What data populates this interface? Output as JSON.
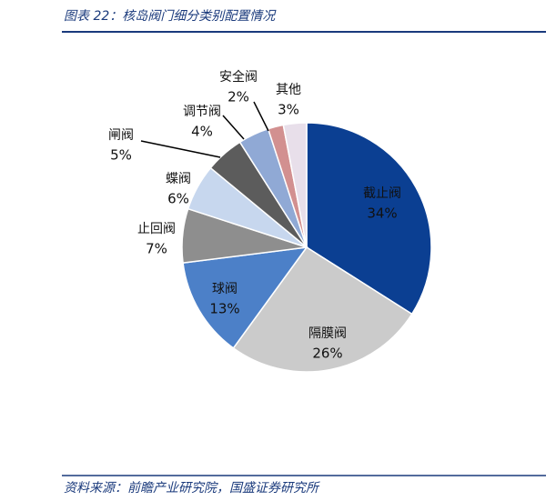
{
  "chart_data": {
    "type": "pie",
    "title": "图表 22：核岛阀门细分类别配置情况",
    "source": "资料来源：前瞻产业研究院，国盛证券研究所",
    "categories": [
      "截止阀",
      "隔膜阀",
      "球阀",
      "止回阀",
      "蝶阀",
      "闸阀",
      "调节阀",
      "安全阀",
      "其他"
    ],
    "values": [
      34,
      26,
      13,
      7,
      6,
      5,
      4,
      2,
      3
    ],
    "value_labels": [
      "34%",
      "26%",
      "13%",
      "7%",
      "6%",
      "5%",
      "4%",
      "2%",
      "3%"
    ],
    "colors": [
      "#0b3f92",
      "#cbcbcb",
      "#4c80c8",
      "#8e8e8e",
      "#c7d7ee",
      "#5c5c5c",
      "#90a9d5",
      "#d29090",
      "#e8dfea"
    ]
  }
}
